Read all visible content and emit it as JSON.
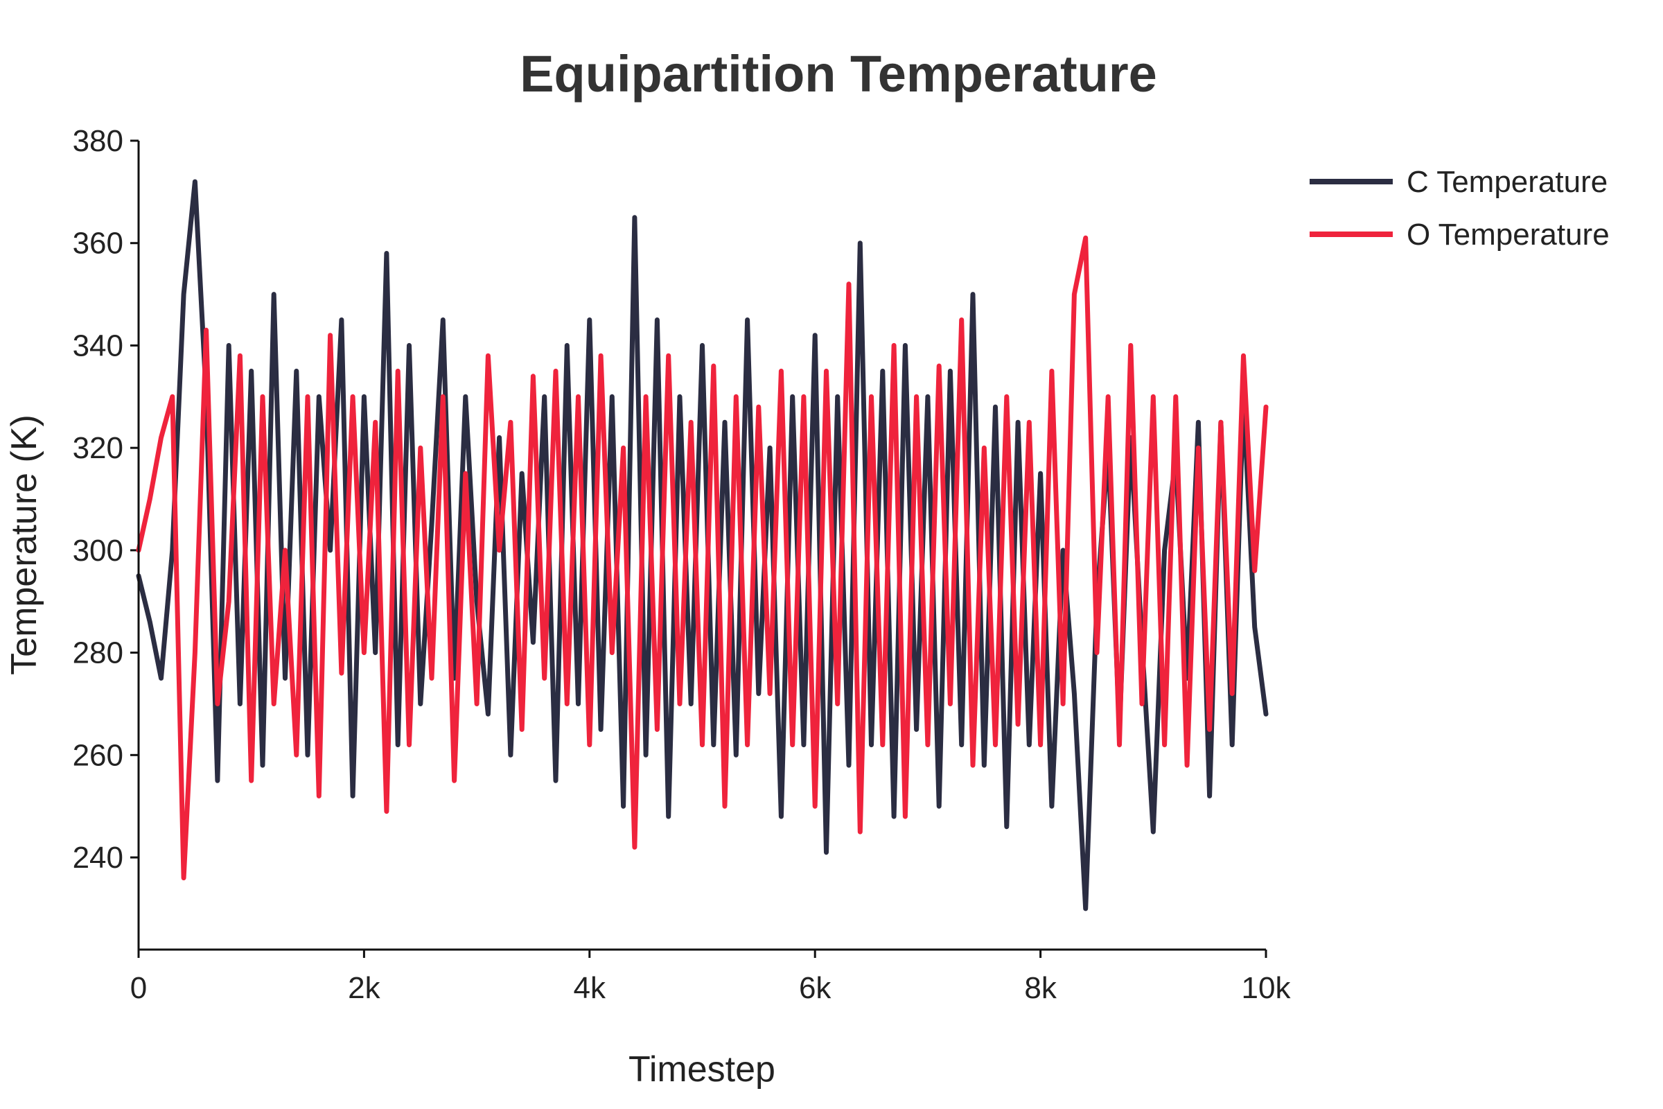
{
  "chart_data": {
    "type": "line",
    "title": "Equipartition Temperature",
    "xlabel": "Timestep",
    "ylabel": "Temperature (K)",
    "xlim": [
      0,
      10000
    ],
    "ylim": [
      222,
      380
    ],
    "x_ticks": [
      0,
      2000,
      4000,
      6000,
      8000,
      10000
    ],
    "x_tick_labels": [
      "0",
      "2k",
      "4k",
      "6k",
      "8k",
      "10k"
    ],
    "y_ticks": [
      240,
      260,
      280,
      300,
      320,
      340,
      360,
      380
    ],
    "y_tick_labels": [
      "240",
      "260",
      "280",
      "300",
      "320",
      "340",
      "360",
      "380"
    ],
    "grid": false,
    "legend_position": "top-right",
    "series": [
      {
        "name": "C Temperature",
        "color": "#2b2d42",
        "x": [
          0,
          100,
          200,
          300,
          400,
          500,
          600,
          700,
          800,
          900,
          1000,
          1100,
          1200,
          1300,
          1400,
          1500,
          1600,
          1700,
          1800,
          1900,
          2000,
          2100,
          2200,
          2300,
          2400,
          2500,
          2600,
          2700,
          2800,
          2900,
          3000,
          3100,
          3200,
          3300,
          3400,
          3500,
          3600,
          3700,
          3800,
          3900,
          4000,
          4100,
          4200,
          4300,
          4400,
          4500,
          4600,
          4700,
          4800,
          4900,
          5000,
          5100,
          5200,
          5300,
          5400,
          5500,
          5600,
          5700,
          5800,
          5900,
          6000,
          6100,
          6200,
          6300,
          6400,
          6500,
          6600,
          6700,
          6800,
          6900,
          7000,
          7100,
          7200,
          7300,
          7400,
          7500,
          7600,
          7700,
          7800,
          7900,
          8000,
          8100,
          8200,
          8300,
          8400,
          8500,
          8600,
          8700,
          8800,
          8900,
          9000,
          9100,
          9200,
          9300,
          9400,
          9500,
          9600,
          9700,
          9800,
          9900,
          10000
        ],
        "values": [
          295,
          286,
          275,
          300,
          350,
          372,
          330,
          255,
          340,
          270,
          335,
          258,
          350,
          275,
          335,
          260,
          330,
          300,
          345,
          252,
          330,
          280,
          358,
          262,
          340,
          270,
          305,
          345,
          275,
          330,
          290,
          268,
          322,
          260,
          315,
          282,
          330,
          255,
          340,
          270,
          345,
          265,
          330,
          250,
          365,
          260,
          345,
          248,
          330,
          270,
          340,
          262,
          325,
          260,
          345,
          272,
          320,
          248,
          330,
          262,
          342,
          241,
          330,
          258,
          360,
          262,
          335,
          248,
          340,
          265,
          330,
          250,
          335,
          262,
          350,
          258,
          328,
          246,
          325,
          262,
          315,
          250,
          300,
          272,
          230,
          290,
          320,
          265,
          322,
          282,
          245,
          300,
          318,
          275,
          325,
          252,
          325,
          262,
          330,
          285,
          268
        ]
      },
      {
        "name": "O Temperature",
        "color": "#ef233c",
        "x": [
          0,
          100,
          200,
          300,
          400,
          500,
          600,
          700,
          800,
          900,
          1000,
          1100,
          1200,
          1300,
          1400,
          1500,
          1600,
          1700,
          1800,
          1900,
          2000,
          2100,
          2200,
          2300,
          2400,
          2500,
          2600,
          2700,
          2800,
          2900,
          3000,
          3100,
          3200,
          3300,
          3400,
          3500,
          3600,
          3700,
          3800,
          3900,
          4000,
          4100,
          4200,
          4300,
          4400,
          4500,
          4600,
          4700,
          4800,
          4900,
          5000,
          5100,
          5200,
          5300,
          5400,
          5500,
          5600,
          5700,
          5800,
          5900,
          6000,
          6100,
          6200,
          6300,
          6400,
          6500,
          6600,
          6700,
          6800,
          6900,
          7000,
          7100,
          7200,
          7300,
          7400,
          7500,
          7600,
          7700,
          7800,
          7900,
          8000,
          8100,
          8200,
          8300,
          8400,
          8500,
          8600,
          8700,
          8800,
          8900,
          9000,
          9100,
          9200,
          9300,
          9400,
          9500,
          9600,
          9700,
          9800,
          9900,
          10000
        ],
        "values": [
          300,
          310,
          322,
          330,
          236,
          280,
          343,
          270,
          290,
          338,
          255,
          330,
          270,
          300,
          260,
          330,
          252,
          342,
          276,
          330,
          280,
          325,
          249,
          335,
          262,
          320,
          275,
          330,
          255,
          315,
          270,
          338,
          300,
          325,
          265,
          334,
          275,
          335,
          270,
          330,
          262,
          338,
          280,
          320,
          242,
          330,
          265,
          338,
          270,
          325,
          262,
          336,
          250,
          330,
          262,
          328,
          272,
          335,
          262,
          330,
          250,
          335,
          270,
          352,
          245,
          330,
          262,
          340,
          248,
          330,
          262,
          336,
          270,
          345,
          258,
          320,
          262,
          330,
          266,
          325,
          262,
          335,
          270,
          350,
          361,
          280,
          330,
          262,
          340,
          270,
          330,
          262,
          330,
          258,
          320,
          265,
          325,
          272,
          338,
          296,
          328
        ]
      }
    ]
  }
}
